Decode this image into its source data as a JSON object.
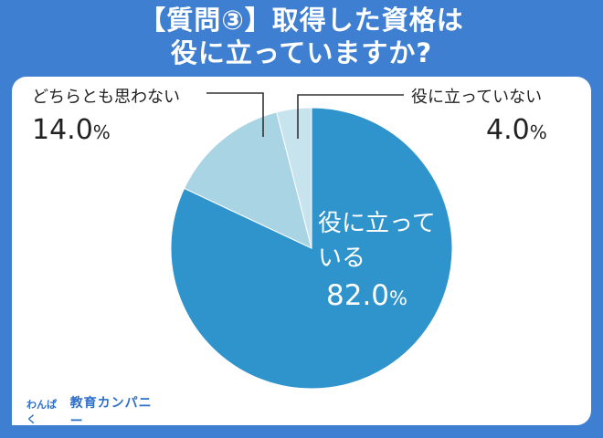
{
  "title_lines": [
    "【質問③】取得した資格は",
    "役に立っていますか?"
  ],
  "chart_data": {
    "type": "pie",
    "title": "【質問③】取得した資格は役に立っていますか?",
    "start_angle_deg": 0,
    "direction": "clockwise",
    "slices": [
      {
        "label_lines": [
          "役に立って",
          "いる"
        ],
        "value": 82.0,
        "display": "82.0",
        "color": "#2f93cc"
      },
      {
        "label_lines": [
          "どちらとも思わない"
        ],
        "value": 14.0,
        "display": "14.0",
        "color": "#a9d4e4"
      },
      {
        "label_lines": [
          "役に立っていない"
        ],
        "value": 4.0,
        "display": "4.0",
        "color": "#c7e3ee"
      }
    ],
    "unit": "%"
  },
  "logo": {
    "small": "わんぱく",
    "main": "教育カンパニー"
  }
}
